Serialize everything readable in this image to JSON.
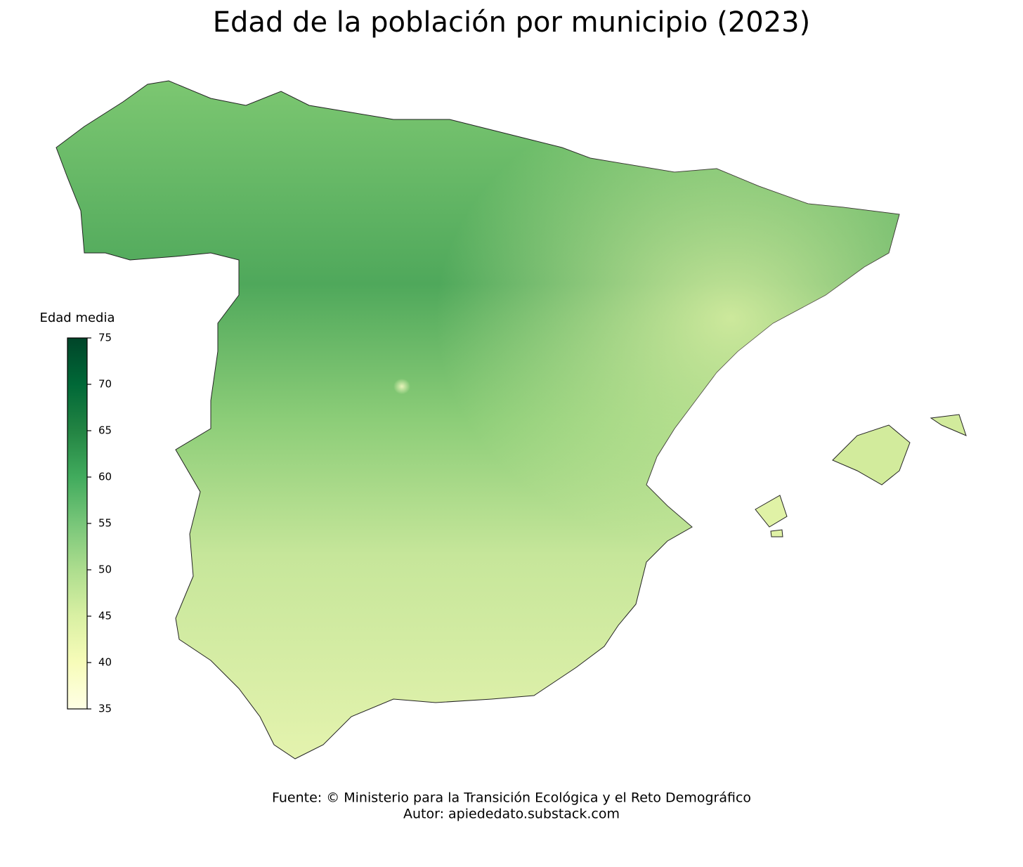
{
  "title": "Edad de la población por municipio (2023)",
  "colorbar": {
    "label": "Edad media",
    "lim": [
      35,
      75
    ],
    "ticks": [
      35,
      40,
      45,
      50,
      55,
      60,
      65,
      70,
      75
    ],
    "colors": [
      "#ffffe5",
      "#f7fcb9",
      "#d9f0a3",
      "#addd8e",
      "#78c679",
      "#41ab5d",
      "#238443",
      "#006837",
      "#004529"
    ]
  },
  "footer": {
    "source": "Fuente: © Ministerio para la Transición Ecológica y el Reto Demográfico",
    "author": "Autor: apiededato.substack.com"
  }
}
